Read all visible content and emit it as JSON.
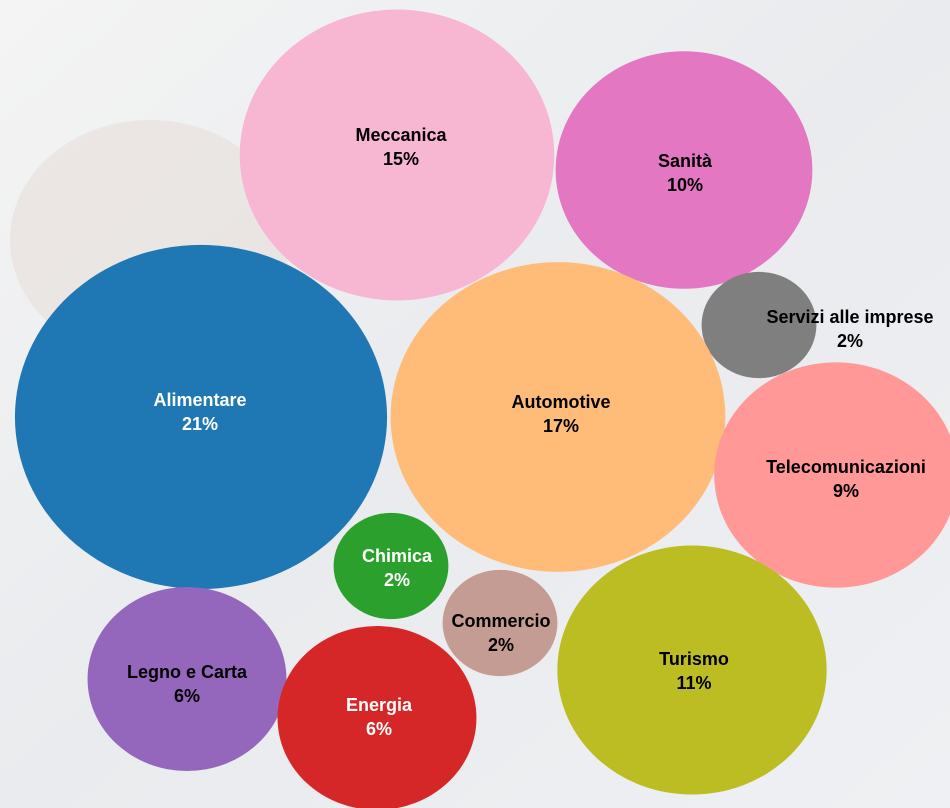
{
  "chart_data": {
    "type": "bubble",
    "categories": [
      "Meccanica",
      "Sanità",
      "Servizi alle imprese",
      "Alimentare",
      "Automotive",
      "Telecomunicazioni",
      "Chimica",
      "Commercio",
      "Legno e Carta",
      "Energia",
      "Turismo"
    ],
    "values": [
      15,
      10,
      2,
      21,
      17,
      9,
      2,
      2,
      6,
      6,
      11
    ],
    "value_labels": [
      "15%",
      "10%",
      "2%",
      "21%",
      "17%",
      "9%",
      "2%",
      "2%",
      "6%",
      "6%",
      "11%"
    ],
    "colors": [
      "#f7b6d2",
      "#e377c2",
      "#7f7f7f",
      "#1f77b4",
      "#ffbb78",
      "#ff9896",
      "#2ca02c",
      "#c49c94",
      "#9467bd",
      "#d62728",
      "#bcbd22"
    ]
  }
}
